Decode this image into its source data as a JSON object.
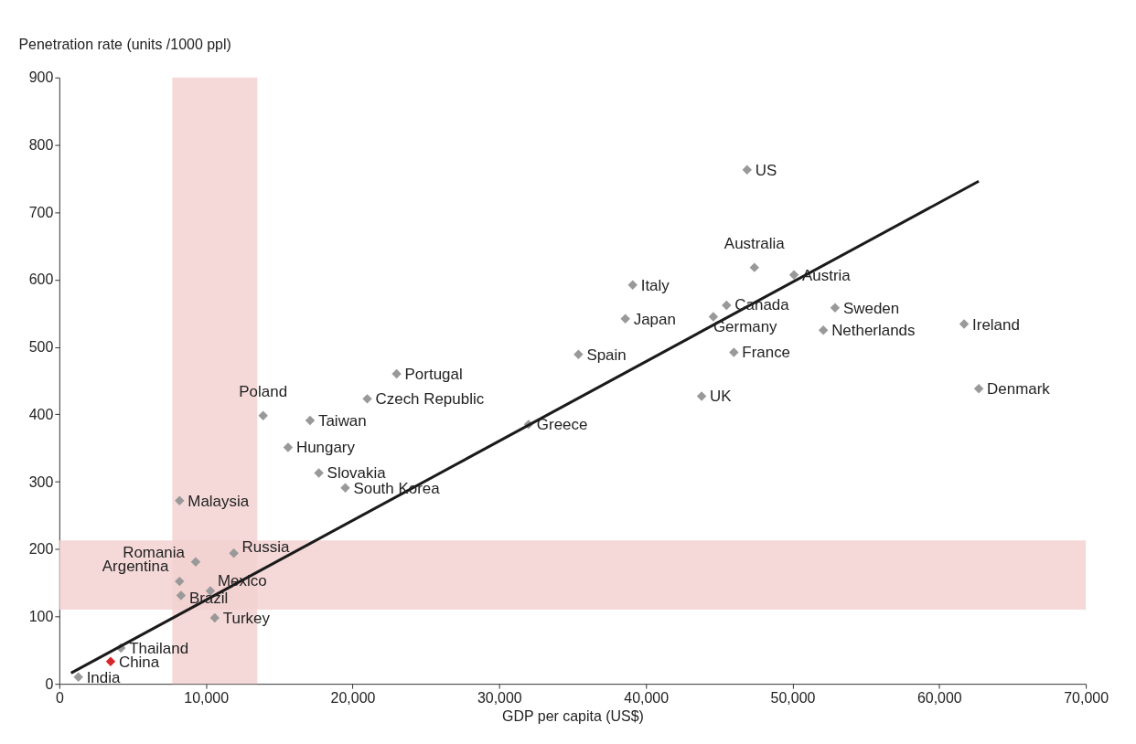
{
  "chart_data": {
    "type": "scatter",
    "xlabel": "GDP per capita (US$)",
    "ylabel": "Penetration rate (units /1000 ppl)",
    "x": [
      46900,
      47400,
      50100,
      39100,
      45500,
      44600,
      52900,
      52100,
      61700,
      38600,
      35400,
      46000,
      43800,
      62700,
      32000,
      23000,
      21000,
      13900,
      17100,
      15600,
      17700,
      19500,
      8200,
      11900,
      9300,
      8200,
      10300,
      8300,
      10600,
      4200,
      3500,
      1300
    ],
    "series": [
      {
        "marker": "diamond",
        "values": [
          763,
          618,
          607,
          592,
          562,
          545,
          558,
          525,
          534,
          542,
          489,
          492,
          427,
          438,
          385,
          460,
          423,
          398,
          391,
          351,
          313,
          291,
          272,
          194,
          181,
          152,
          138,
          131,
          98,
          53,
          33,
          10
        ],
        "colors": [
          "#999999",
          "#999999",
          "#999999",
          "#999999",
          "#999999",
          "#999999",
          "#999999",
          "#999999",
          "#999999",
          "#999999",
          "#999999",
          "#999999",
          "#999999",
          "#999999",
          "#999999",
          "#999999",
          "#999999",
          "#999999",
          "#999999",
          "#999999",
          "#999999",
          "#999999",
          "#999999",
          "#999999",
          "#999999",
          "#999999",
          "#999999",
          "#999999",
          "#999999",
          "#999999",
          "#d62828",
          "#999999"
        ]
      },
      {
        "type": "line",
        "color": "#1a1a1a",
        "marker": "none",
        "x": [
          800,
          62700
        ],
        "values": [
          16,
          746
        ]
      }
    ],
    "annotations": [
      {
        "text": "US",
        "x": 46900,
        "y": 763
      },
      {
        "text": "Australia",
        "x": 47400,
        "y": 618
      },
      {
        "text": "Austria",
        "x": 50100,
        "y": 607
      },
      {
        "text": "Italy",
        "x": 39100,
        "y": 592
      },
      {
        "text": "Canada",
        "x": 45500,
        "y": 562
      },
      {
        "text": "Germany",
        "x": 44600,
        "y": 545
      },
      {
        "text": "Sweden",
        "x": 52900,
        "y": 558
      },
      {
        "text": "Netherlands",
        "x": 52100,
        "y": 525
      },
      {
        "text": "Ireland",
        "x": 61700,
        "y": 534
      },
      {
        "text": "Japan",
        "x": 38600,
        "y": 542
      },
      {
        "text": "Spain",
        "x": 35400,
        "y": 489
      },
      {
        "text": "France",
        "x": 46000,
        "y": 492
      },
      {
        "text": "UK",
        "x": 43800,
        "y": 427
      },
      {
        "text": "Denmark",
        "x": 62700,
        "y": 438
      },
      {
        "text": "Greece",
        "x": 32000,
        "y": 385
      },
      {
        "text": "Portugal",
        "x": 23000,
        "y": 460
      },
      {
        "text": "Czech Republic",
        "x": 21000,
        "y": 423
      },
      {
        "text": "Poland",
        "x": 13900,
        "y": 398
      },
      {
        "text": "Taiwan",
        "x": 17100,
        "y": 391
      },
      {
        "text": "Hungary",
        "x": 15600,
        "y": 351
      },
      {
        "text": "Slovakia",
        "x": 17700,
        "y": 313
      },
      {
        "text": "South Korea",
        "x": 19500,
        "y": 291
      },
      {
        "text": "Malaysia",
        "x": 8200,
        "y": 272
      },
      {
        "text": "Russia",
        "x": 11900,
        "y": 194
      },
      {
        "text": "Romania",
        "x": 9300,
        "y": 181
      },
      {
        "text": "Argentina",
        "x": 8200,
        "y": 152
      },
      {
        "text": "Mexico",
        "x": 10300,
        "y": 138
      },
      {
        "text": "Brazil",
        "x": 8300,
        "y": 131
      },
      {
        "text": "Turkey",
        "x": 10600,
        "y": 98
      },
      {
        "text": "Thailand",
        "x": 4200,
        "y": 53
      },
      {
        "text": "China",
        "x": 3500,
        "y": 33
      },
      {
        "text": "India",
        "x": 1300,
        "y": 10
      }
    ],
    "bands": [
      {
        "axis": "x",
        "from": 7700,
        "to": 13500,
        "color": "#f2cfcf"
      },
      {
        "axis": "y",
        "from": 110,
        "to": 213,
        "color": "#f2cfcf"
      }
    ],
    "xlim": [
      0,
      70000
    ],
    "ylim": [
      0,
      900
    ],
    "xticks": [
      {
        "value": 0,
        "label": "0"
      },
      {
        "value": 10000,
        "label": "10,000"
      },
      {
        "value": 20000,
        "label": "20,000"
      },
      {
        "value": 30000,
        "label": "30,000"
      },
      {
        "value": 40000,
        "label": "40,000"
      },
      {
        "value": 50000,
        "label": "50,000"
      },
      {
        "value": 60000,
        "label": "60,000"
      },
      {
        "value": 70000,
        "label": "70,000"
      }
    ],
    "yticks": [
      0,
      100,
      200,
      300,
      400,
      500,
      600,
      700,
      800,
      900
    ],
    "grid": false
  }
}
